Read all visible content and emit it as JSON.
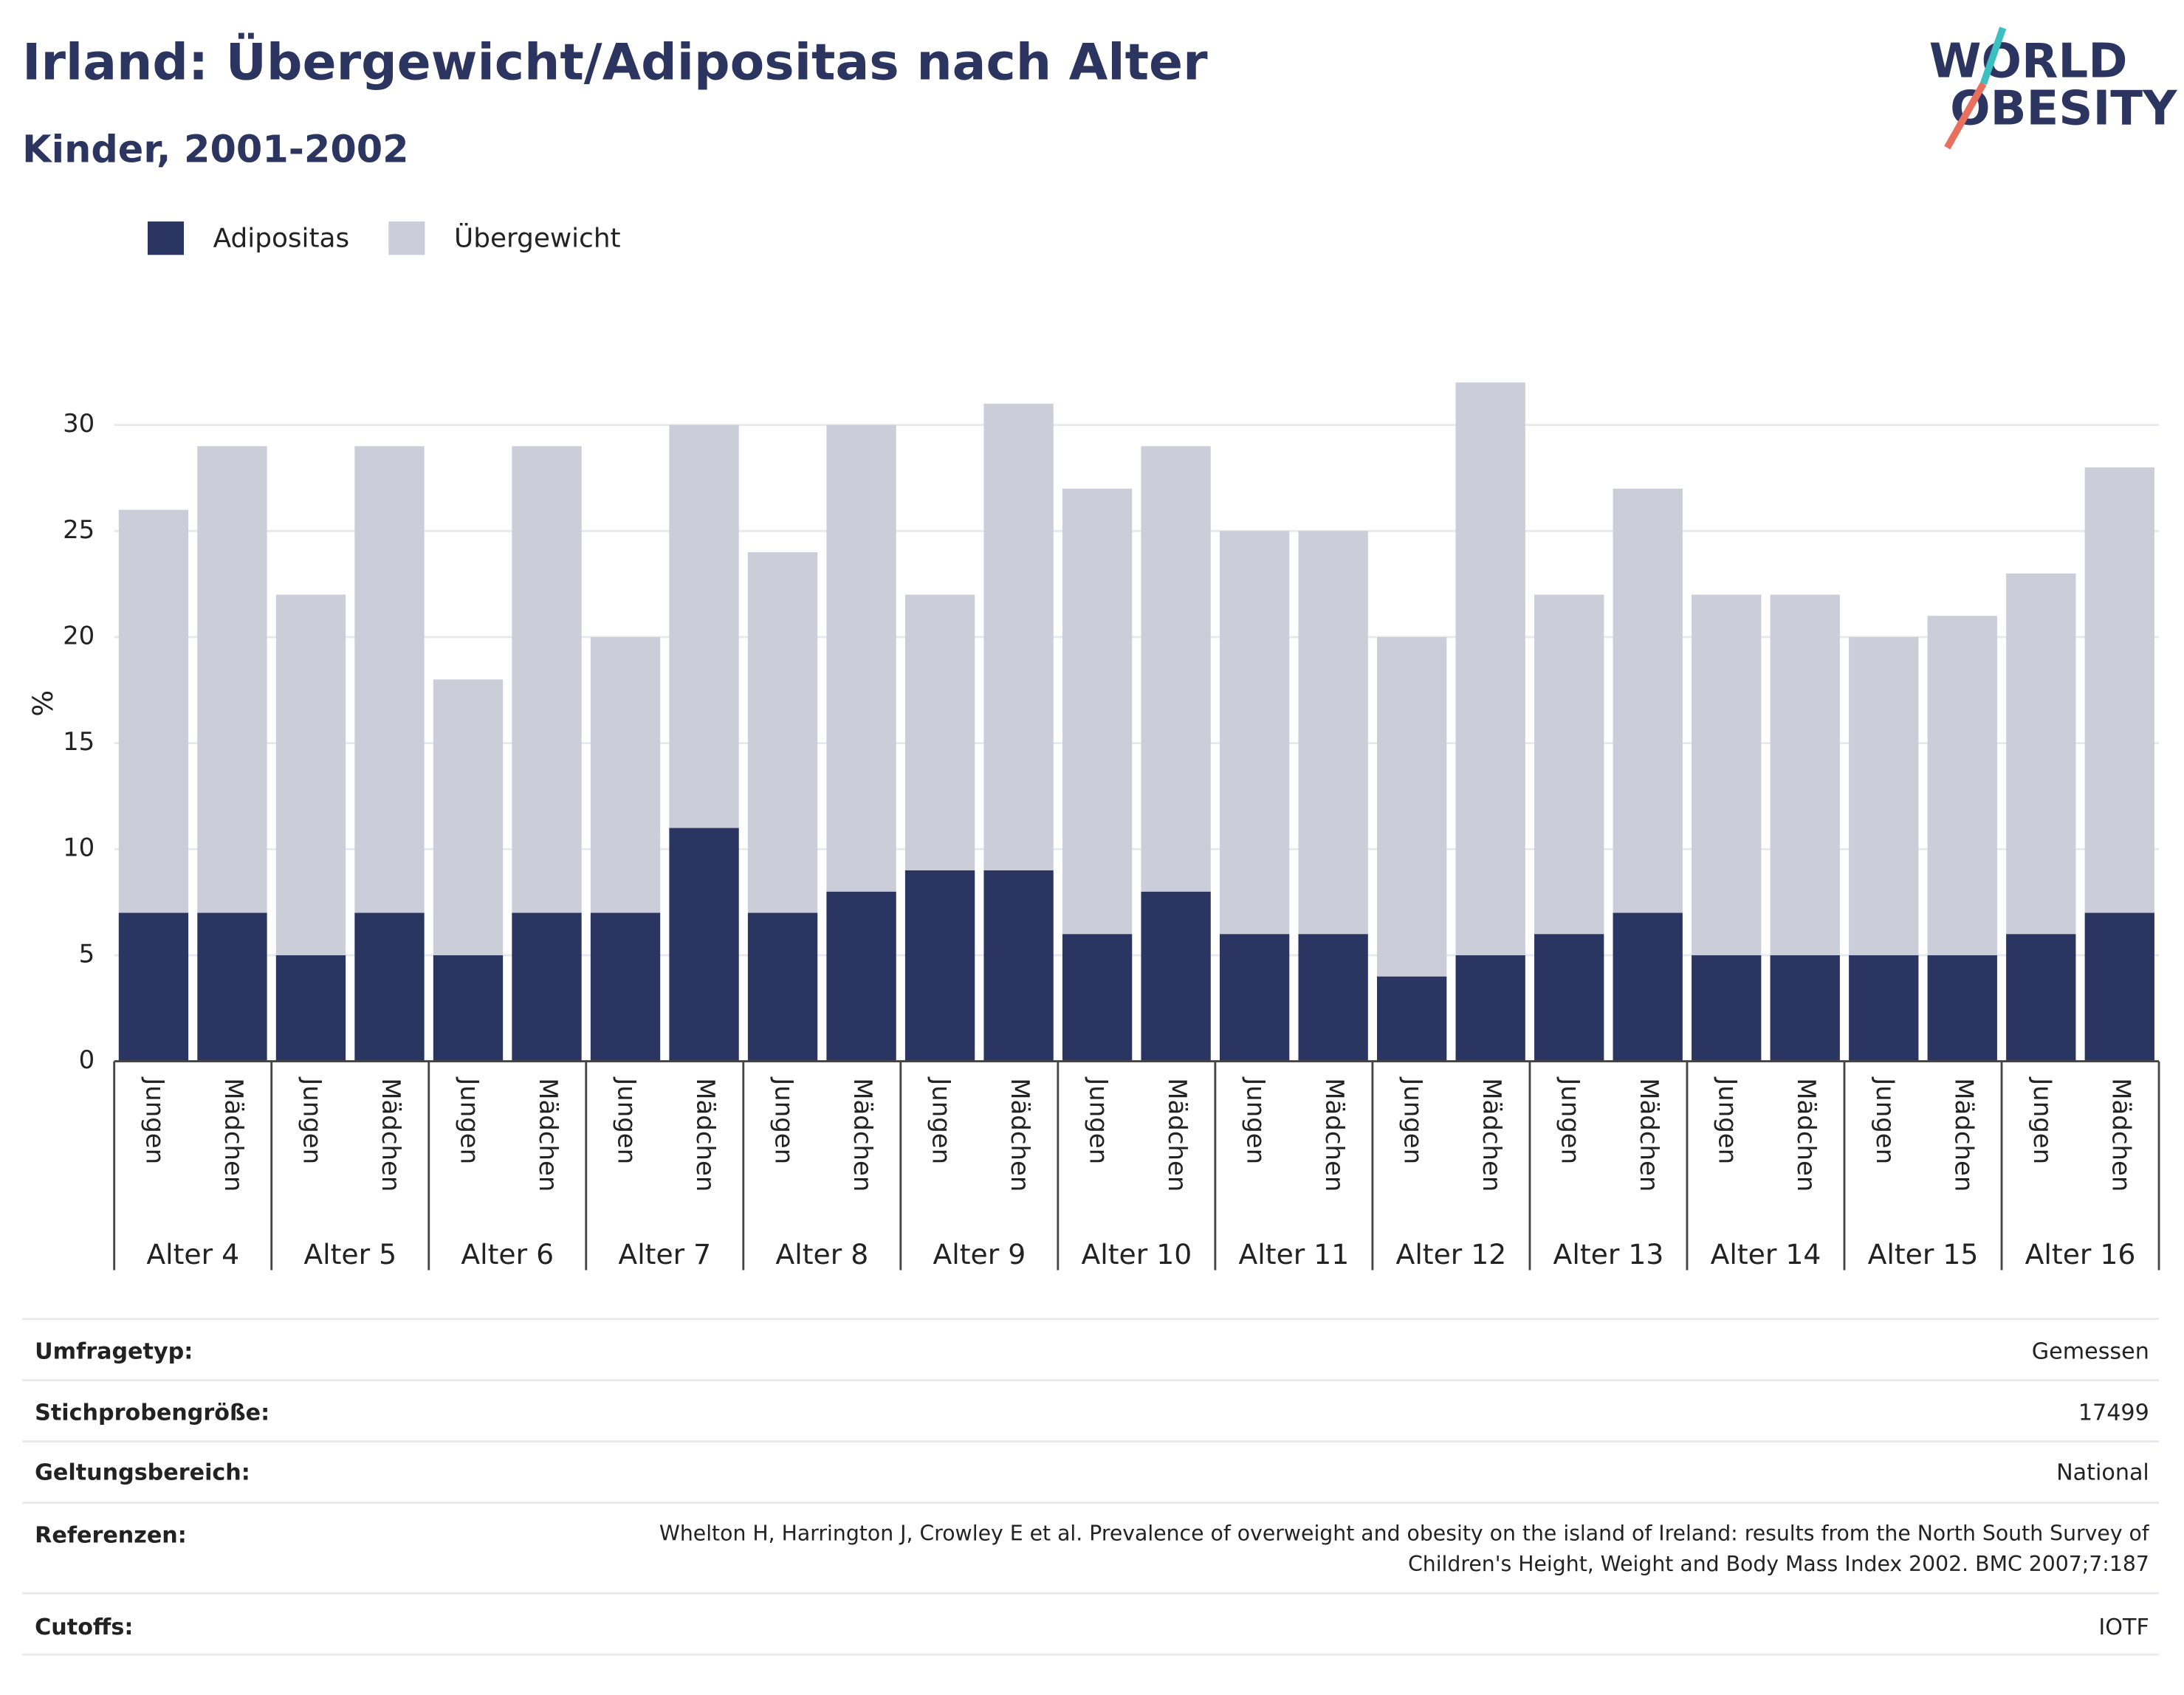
{
  "chart_data": {
    "type": "stacked_bar",
    "title": "Irland: Übergewicht/Adipositas nach Alter",
    "subtitle": "Kinder, 2001-2002",
    "y_label": "%",
    "categories": [
      "Jungen",
      "Mädchen",
      "Jungen",
      "Mädchen",
      "Jungen",
      "Mädchen",
      "Jungen",
      "Mädchen",
      "Jungen",
      "Mädchen",
      "Jungen",
      "Mädchen",
      "Jungen",
      "Mädchen",
      "Jungen",
      "Mädchen",
      "Jungen",
      "Mädchen",
      "Jungen",
      "Mädchen",
      "Jungen",
      "Mädchen",
      "Jungen",
      "Mädchen",
      "Jungen",
      "Mädchen"
    ],
    "groups": [
      "Alter 4",
      "Alter 5",
      "Alter 6",
      "Alter 7",
      "Alter 8",
      "Alter 9",
      "Alter 10",
      "Alter 11",
      "Alter 12",
      "Alter 13",
      "Alter 14",
      "Alter 15",
      "Alter 16"
    ],
    "series": [
      {
        "name": "Adipositas",
        "color": "#2a3561",
        "values": [
          7,
          7,
          5,
          7,
          5,
          7,
          7,
          11,
          7,
          8,
          9,
          9,
          6,
          8,
          6,
          6,
          4,
          5,
          6,
          7,
          5,
          5,
          5,
          5,
          6,
          7
        ]
      },
      {
        "name": "Übergewicht",
        "color": "#cbcdd8",
        "values": [
          19,
          22,
          17,
          22,
          13,
          22,
          13,
          19,
          17,
          22,
          13,
          22,
          21,
          21,
          19,
          19,
          16,
          27,
          16,
          20,
          17,
          17,
          15,
          16,
          17,
          21
        ]
      }
    ],
    "ylim": [
      0,
      35
    ],
    "yticks": [
      0,
      5,
      10,
      15,
      20,
      25,
      30
    ],
    "grid": true
  },
  "logo": {
    "line1": "WORLD",
    "line2": "OBESITY"
  },
  "table": {
    "rows": [
      [
        "Umfragetyp:",
        "Gemessen"
      ],
      [
        "Stichprobengröße:",
        "17499"
      ],
      [
        "Geltungsbereich:",
        "National"
      ],
      [
        "Referenzen:",
        "Whelton H, Harrington J, Crowley E et al. Prevalence of overweight and obesity on the island of Ireland: results from the North South Survey of Children's Height, Weight and Body Mass Index 2002. BMC 2007;7:187"
      ],
      [
        "Cutoffs:",
        "IOTF"
      ]
    ]
  }
}
